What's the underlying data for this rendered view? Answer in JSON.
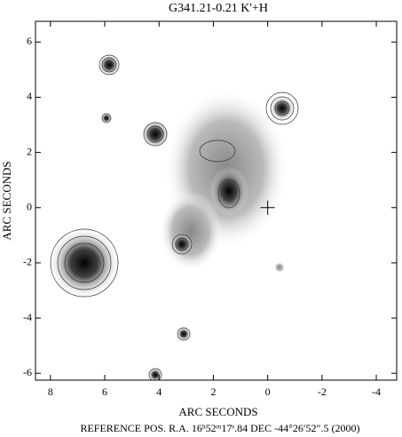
{
  "chart_data": {
    "type": "image",
    "title": "G341.21-0.21 K'+H",
    "xlabel": "ARC SECONDS",
    "ylabel": "ARC SECONDS",
    "footnote": "REFERENCE POS.  R.A. 16ʰ52ᵐ17ˢ.84  DEC  -44°26′52″.5  (2000)",
    "xlim": [
      8.55,
      -4.75
    ],
    "ylim": [
      -6.25,
      6.75
    ],
    "xticks": [
      8,
      6,
      4,
      2,
      0,
      -2,
      -4
    ],
    "yticks": [
      -6,
      -4,
      -2,
      0,
      2,
      4,
      6
    ],
    "marker": {
      "x": 0,
      "y": 0
    }
  }
}
